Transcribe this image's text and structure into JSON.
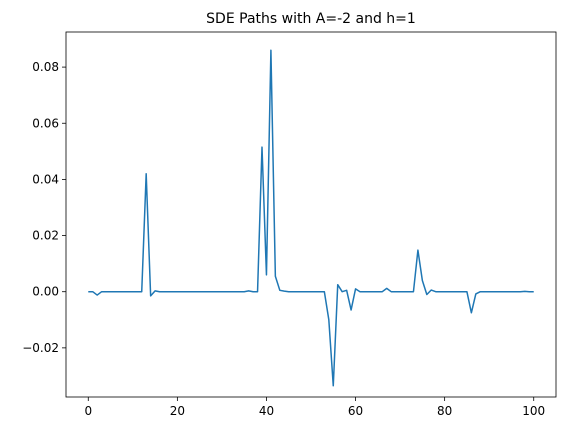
{
  "chart_data": {
    "type": "line",
    "title": "SDE Paths with A=-2 and h=1",
    "xlabel": "",
    "ylabel": "",
    "xlim": [
      -5,
      105
    ],
    "ylim": [
      -0.0375,
      0.0925
    ],
    "x_ticks": [
      0,
      20,
      40,
      60,
      80,
      100
    ],
    "x_tick_labels": [
      "0",
      "20",
      "40",
      "60",
      "80",
      "100"
    ],
    "y_ticks": [
      -0.02,
      0.0,
      0.02,
      0.04,
      0.06,
      0.08
    ],
    "y_tick_labels": [
      "−0.02",
      "0.00",
      "0.02",
      "0.04",
      "0.06",
      "0.08"
    ],
    "grid": false,
    "series": [
      {
        "color": "#1f77b4",
        "x": [
          0,
          1,
          2,
          3,
          4,
          5,
          6,
          7,
          8,
          9,
          10,
          11,
          12,
          13,
          14,
          15,
          16,
          17,
          18,
          19,
          20,
          21,
          22,
          23,
          24,
          25,
          26,
          27,
          28,
          29,
          30,
          31,
          32,
          33,
          34,
          35,
          36,
          37,
          38,
          39,
          40,
          41,
          42,
          43,
          44,
          45,
          46,
          47,
          48,
          49,
          50,
          51,
          52,
          53,
          54,
          55,
          56,
          57,
          58,
          59,
          60,
          61,
          62,
          63,
          64,
          65,
          66,
          67,
          68,
          69,
          70,
          71,
          72,
          73,
          74,
          75,
          76,
          77,
          78,
          79,
          80,
          81,
          82,
          83,
          84,
          85,
          86,
          87,
          88,
          89,
          90,
          91,
          92,
          93,
          94,
          95,
          96,
          97,
          98,
          99,
          100
        ],
        "y": [
          0,
          0,
          -0.0012,
          0,
          0,
          0,
          0,
          0,
          0,
          0,
          0,
          0,
          0,
          0.042,
          -0.0015,
          0.0003,
          0,
          0,
          0,
          0,
          0,
          0,
          0,
          0,
          0,
          0,
          0,
          0,
          0,
          0,
          0,
          0,
          0,
          0,
          0,
          0,
          0.0003,
          0,
          0,
          0.0515,
          0.006,
          0.086,
          0.0055,
          0.0005,
          0.0002,
          0,
          0,
          0,
          0,
          0,
          0,
          0,
          0,
          0,
          -0.01,
          -0.0335,
          0.0025,
          0,
          0.0005,
          -0.0065,
          0.001,
          0,
          0,
          0,
          0,
          0,
          0,
          0.0012,
          0,
          0,
          0,
          0,
          0,
          0,
          0.0148,
          0.004,
          -0.001,
          0.0006,
          0,
          0,
          0,
          0,
          0,
          0,
          0,
          0,
          -0.0075,
          -0.0008,
          0,
          0,
          0,
          0,
          0,
          0,
          0,
          0,
          0,
          0,
          0.0001,
          0,
          0
        ]
      }
    ]
  }
}
